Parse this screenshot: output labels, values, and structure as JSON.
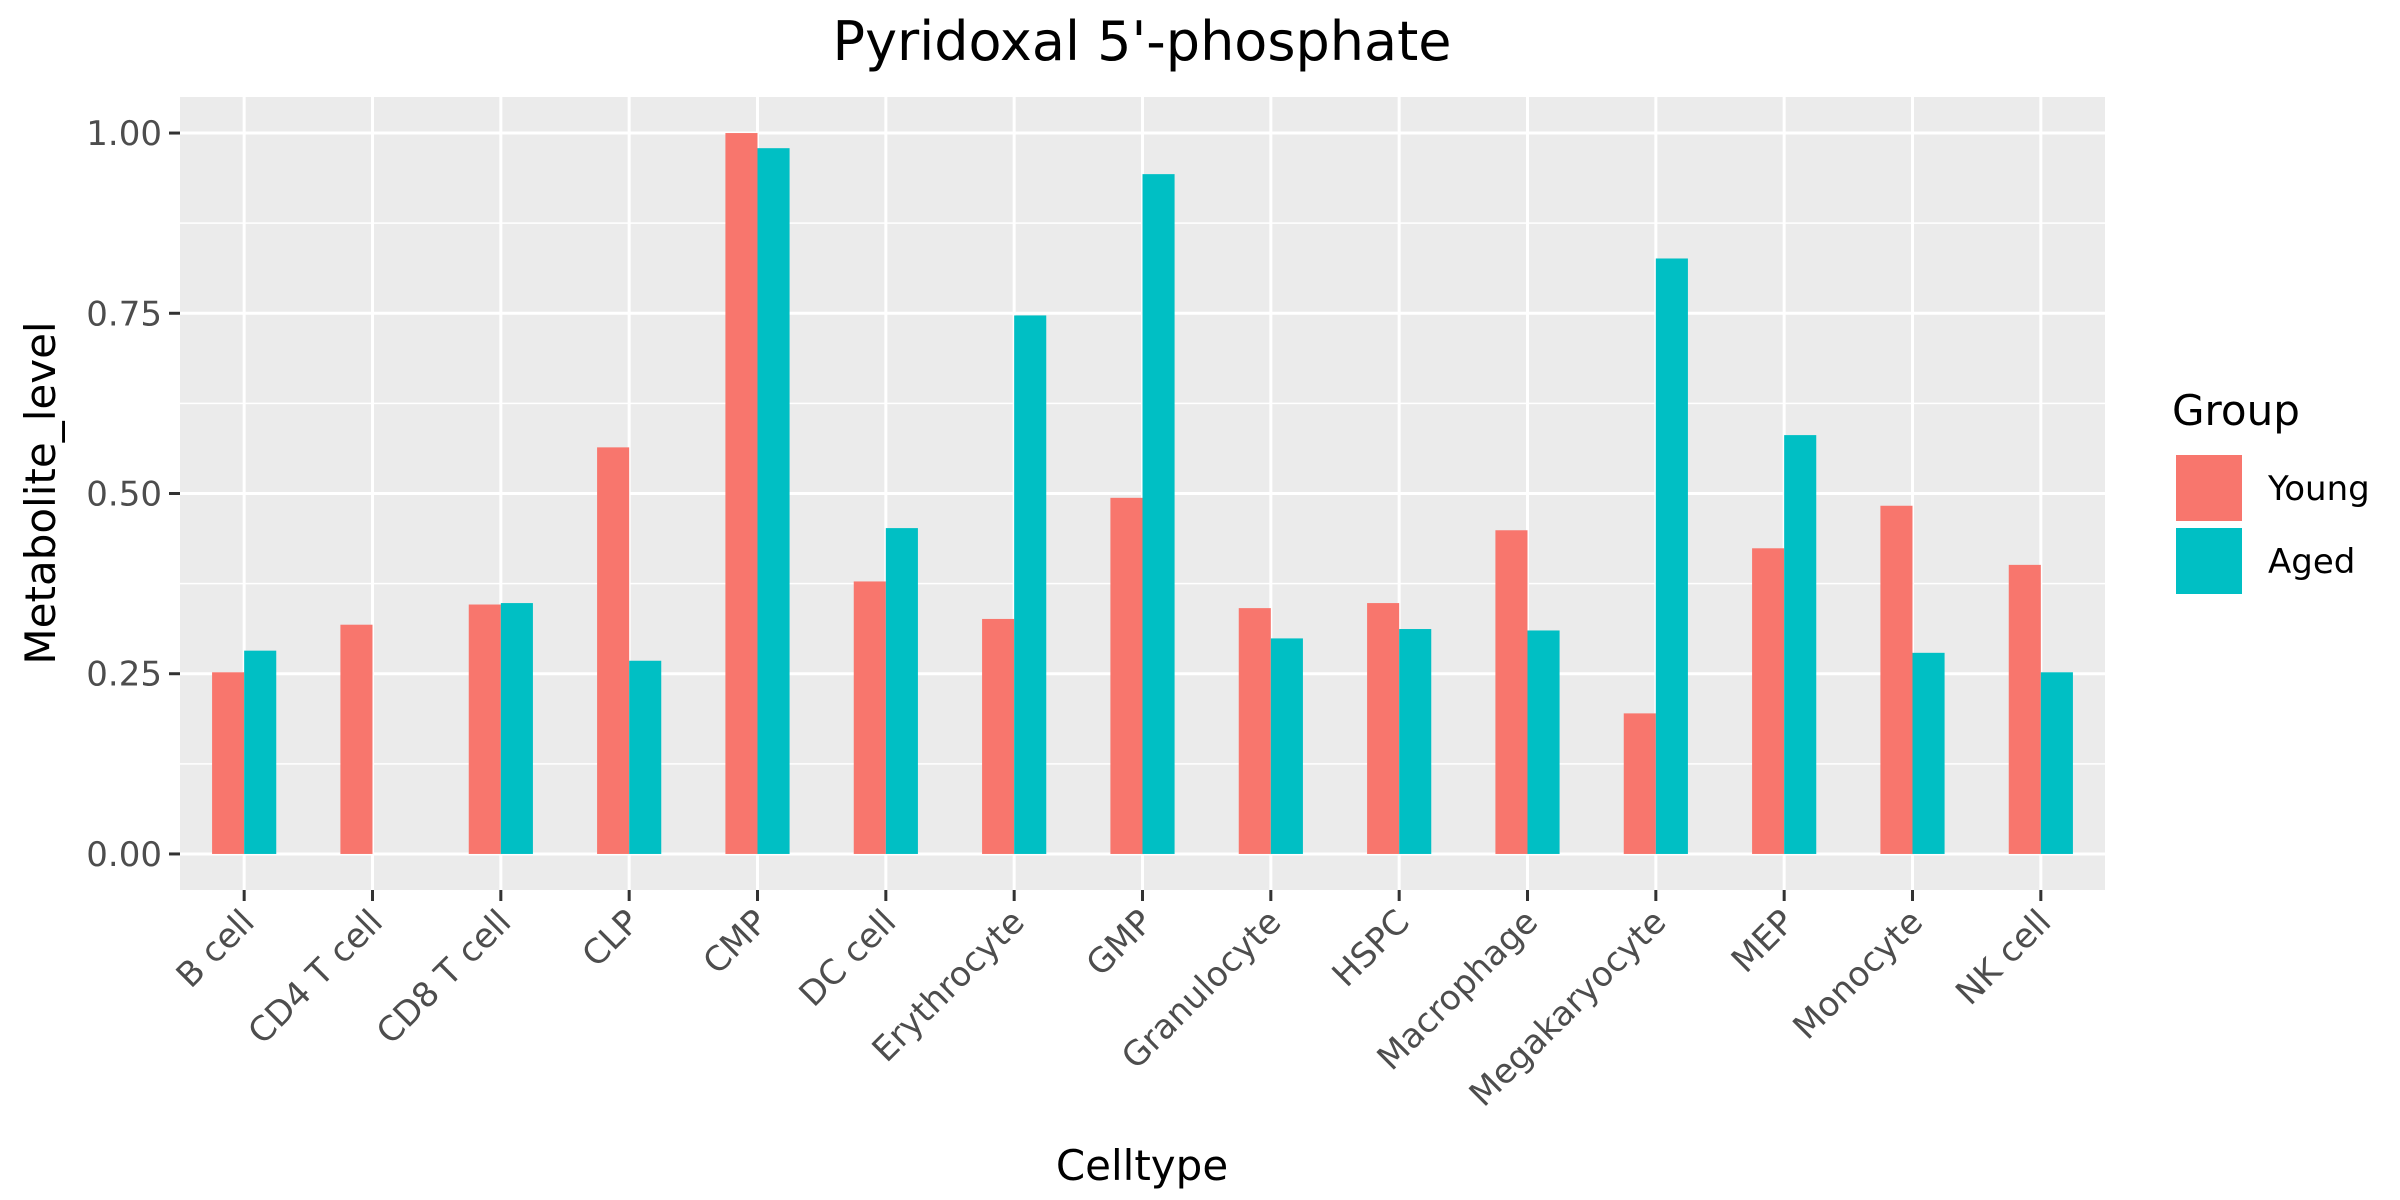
{
  "chart_data": {
    "type": "bar",
    "title": "Pyridoxal 5'-phosphate",
    "xlabel": "Celltype",
    "ylabel": "Metabolite_level",
    "categories": [
      "B cell",
      "CD4 T cell",
      "CD8 T cell",
      "CLP",
      "CMP",
      "DC cell",
      "Erythrocyte",
      "GMP",
      "Granulocyte",
      "HSPC",
      "Macrophage",
      "Megakaryocyte",
      "MEP",
      "Monocyte",
      "NK cell"
    ],
    "series": [
      {
        "name": "Young",
        "color": "#F8766D",
        "values": [
          0.252,
          0.318,
          0.346,
          0.564,
          1.0,
          0.378,
          0.326,
          0.494,
          0.341,
          0.348,
          0.449,
          0.195,
          0.424,
          0.483,
          0.401
        ]
      },
      {
        "name": "Aged",
        "color": "#00BFC4",
        "values": [
          0.282,
          null,
          0.348,
          0.268,
          0.979,
          0.452,
          0.747,
          0.943,
          0.299,
          0.312,
          0.31,
          0.826,
          0.581,
          0.279,
          0.252
        ]
      }
    ],
    "ylim": [
      -0.05,
      1.05
    ],
    "yticks": [
      0,
      0.25,
      0.5,
      0.75,
      1
    ],
    "ytick_labels": [
      "0.00",
      "0.25",
      "0.50",
      "0.75",
      "1.00"
    ],
    "grid": true,
    "legend": {
      "title": "Group",
      "position": "right"
    },
    "colors": {
      "panel": "#EBEBEB",
      "grid": "#FFFFFF",
      "tick": "#333333"
    }
  }
}
